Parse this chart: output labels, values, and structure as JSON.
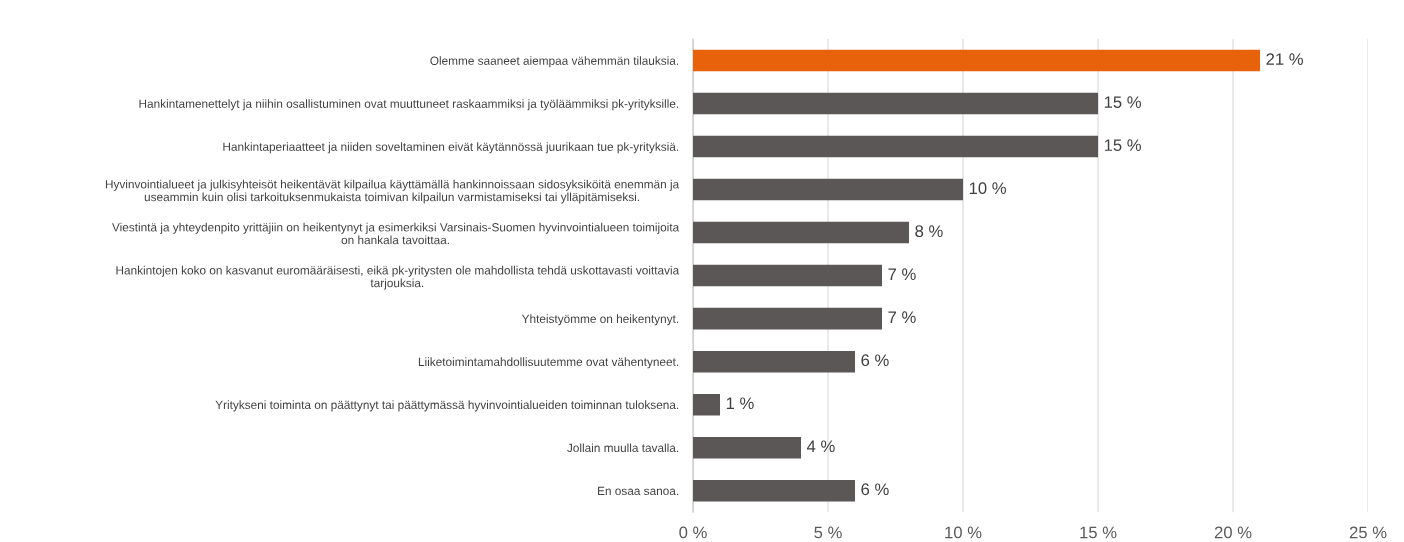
{
  "chart_data": {
    "type": "bar",
    "orientation": "horizontal",
    "categories": [
      "Olemme saaneet aiempaa vähemmän tilauksia.",
      "Hankintamenettelyt ja niihin osallistuminen ovat muuttuneet raskaammiksi ja työläämmiksi pk-yrityksille.",
      "Hankintaperiaatteet ja niiden soveltaminen eivät käytännössä juurikaan tue pk-yrityksiä.",
      "Hyvinvointialueet ja julkisyhteisöt heikentävät kilpailua käyttämällä hankinnoissaan sidosyksiköitä enemmän ja useammin kuin olisi tarkoituksenmukaista toimivan kilpailun varmistamiseksi tai ylläpitämiseksi.",
      "Viestintä ja yhteydenpito yrittäjiin on heikentynyt ja esimerkiksi Varsinais-Suomen hyvinvointialueen toimijoita on hankala tavoittaa.",
      "Hankintojen koko on kasvanut euromääräisesti, eikä pk-yritysten ole mahdollista tehdä uskottavasti voittavia tarjouksia.",
      "Yhteistyömme on heikentynyt.",
      "Liiketoimintamahdollisuutemme ovat vähentyneet.",
      "Yritykseni toiminta on päättynyt tai päättymässä hyvinvointialueiden toiminnan tuloksena.",
      "Jollain muulla tavalla.",
      "En osaa sanoa."
    ],
    "values": [
      21,
      15,
      15,
      10,
      8,
      7,
      7,
      6,
      1,
      4,
      6
    ],
    "value_labels": [
      "21 %",
      "15 %",
      "15 %",
      "10 %",
      "8 %",
      "7 %",
      "7 %",
      "6 %",
      "1 %",
      "4 %",
      "6 %"
    ],
    "colors": [
      "#e8620c",
      "#5b5756",
      "#5b5756",
      "#5b5756",
      "#5b5756",
      "#5b5756",
      "#5b5756",
      "#5b5756",
      "#5b5756",
      "#5b5756",
      "#5b5756"
    ],
    "xlim": [
      0,
      25
    ],
    "xticks": [
      {
        "value": 0,
        "label": "0 %"
      },
      {
        "value": 5,
        "label": "5 %"
      },
      {
        "value": 10,
        "label": "10 %"
      },
      {
        "value": 15,
        "label": "15 %"
      },
      {
        "value": 20,
        "label": "20 %"
      },
      {
        "value": 25,
        "label": "25 %"
      }
    ],
    "grid": "x",
    "legend": false
  }
}
